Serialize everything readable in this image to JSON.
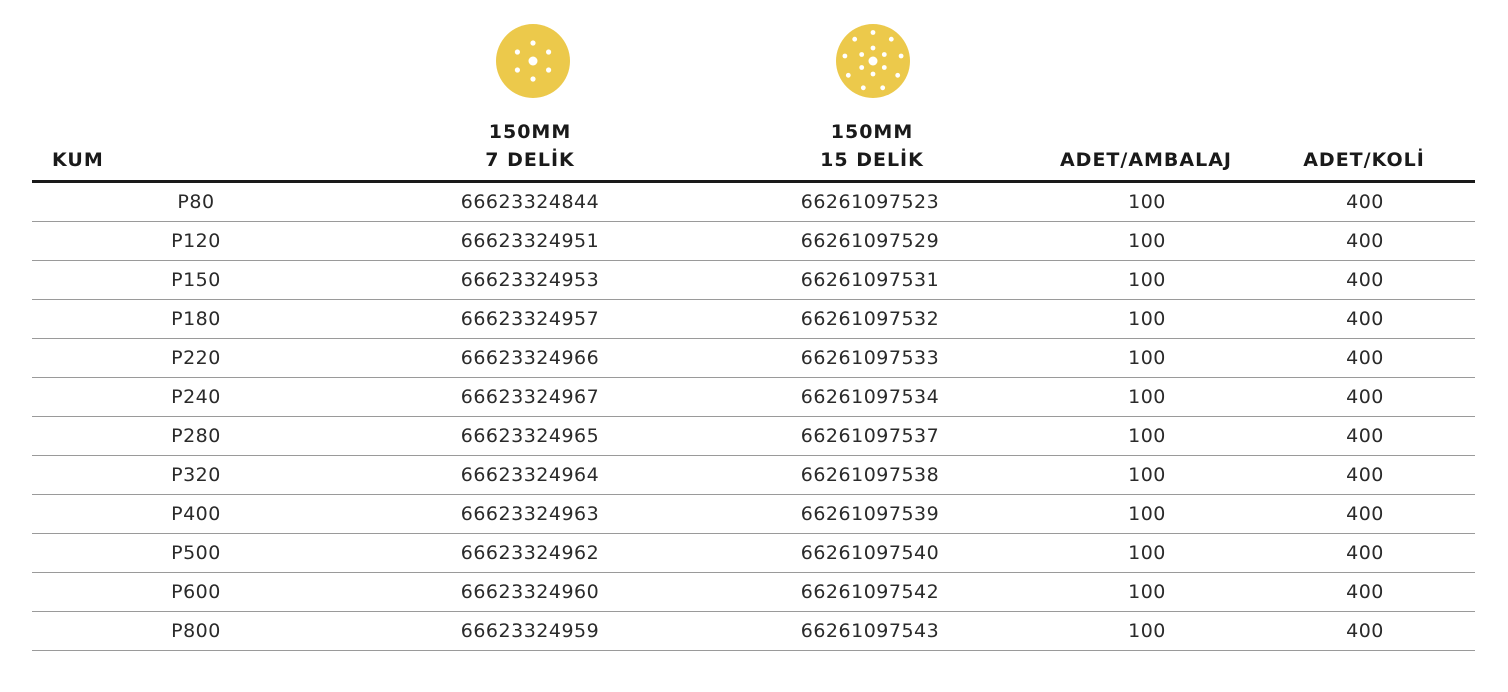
{
  "header": {
    "kum": "KUM",
    "col7_line1": "150MM",
    "col7_line2": "7 DELİK",
    "col15_line1": "150MM",
    "col15_line2": "15 DELİK",
    "ambalaj": "ADET/AMBALAJ",
    "koli": "ADET/KOLİ"
  },
  "colors": {
    "disc": "#ecc94b",
    "hole": "#ffffff",
    "rule": "#1a1a1a"
  },
  "icons": [
    "sanding-disc-7-hole-icon",
    "sanding-disc-15-hole-icon"
  ],
  "rows": [
    {
      "kum": "P80",
      "code7": "66623324844",
      "code15": "66261097523",
      "ambalaj": "100",
      "koli": "400"
    },
    {
      "kum": "P120",
      "code7": "66623324951",
      "code15": "66261097529",
      "ambalaj": "100",
      "koli": "400"
    },
    {
      "kum": "P150",
      "code7": "66623324953",
      "code15": "66261097531",
      "ambalaj": "100",
      "koli": "400"
    },
    {
      "kum": "P180",
      "code7": "66623324957",
      "code15": "66261097532",
      "ambalaj": "100",
      "koli": "400"
    },
    {
      "kum": "P220",
      "code7": "66623324966",
      "code15": "66261097533",
      "ambalaj": "100",
      "koli": "400"
    },
    {
      "kum": "P240",
      "code7": "66623324967",
      "code15": "66261097534",
      "ambalaj": "100",
      "koli": "400"
    },
    {
      "kum": "P280",
      "code7": "66623324965",
      "code15": "66261097537",
      "ambalaj": "100",
      "koli": "400"
    },
    {
      "kum": "P320",
      "code7": "66623324964",
      "code15": "66261097538",
      "ambalaj": "100",
      "koli": "400"
    },
    {
      "kum": "P400",
      "code7": "66623324963",
      "code15": "66261097539",
      "ambalaj": "100",
      "koli": "400"
    },
    {
      "kum": "P500",
      "code7": "66623324962",
      "code15": "66261097540",
      "ambalaj": "100",
      "koli": "400"
    },
    {
      "kum": "P600",
      "code7": "66623324960",
      "code15": "66261097542",
      "ambalaj": "100",
      "koli": "400"
    },
    {
      "kum": "P800",
      "code7": "66623324959",
      "code15": "66261097543",
      "ambalaj": "100",
      "koli": "400"
    }
  ]
}
